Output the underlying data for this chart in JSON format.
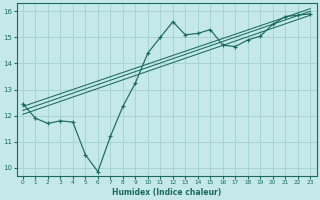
{
  "xlabel": "Humidex (Indice chaleur)",
  "bg_color": "#c5e8e8",
  "grid_color": "#a8d4d4",
  "line_color": "#1a6b5a",
  "xlim": [
    -0.5,
    23.5
  ],
  "ylim": [
    9.7,
    16.3
  ],
  "xticks": [
    0,
    1,
    2,
    3,
    4,
    5,
    6,
    7,
    8,
    9,
    10,
    11,
    12,
    13,
    14,
    15,
    16,
    17,
    18,
    19,
    20,
    21,
    22,
    23
  ],
  "yticks": [
    10,
    11,
    12,
    13,
    14,
    15,
    16
  ],
  "main_x": [
    0,
    1,
    2,
    3,
    4,
    5,
    6,
    7,
    8,
    9,
    10,
    11,
    12,
    13,
    14,
    15,
    16,
    17,
    18,
    19,
    20,
    21,
    22,
    23
  ],
  "main_y": [
    12.45,
    11.9,
    11.7,
    11.8,
    11.75,
    10.5,
    9.85,
    11.2,
    12.35,
    13.25,
    14.4,
    15.0,
    15.6,
    15.1,
    15.15,
    15.3,
    14.7,
    14.65,
    14.9,
    15.05,
    15.5,
    15.8,
    15.85,
    15.9
  ],
  "reg_lines": [
    {
      "x": [
        0,
        23
      ],
      "y": [
        12.05,
        15.85
      ]
    },
    {
      "x": [
        0,
        23
      ],
      "y": [
        12.2,
        16.0
      ]
    },
    {
      "x": [
        0,
        23
      ],
      "y": [
        12.35,
        16.1
      ]
    }
  ]
}
